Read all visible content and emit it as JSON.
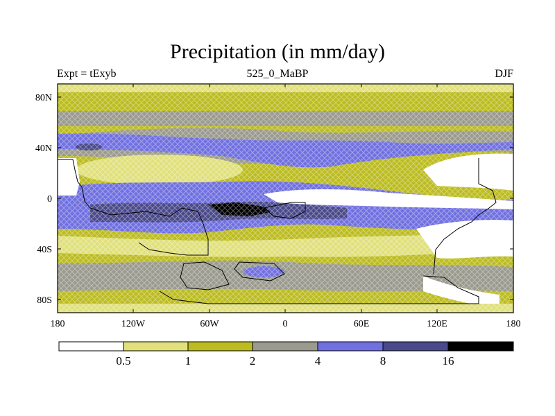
{
  "title": "Precipitation (in mm/day)",
  "subtitle_left": "Expt = tExyb",
  "subtitle_center": "525_0_MaBP",
  "subtitle_right": "DJF",
  "map": {
    "lon_range": [
      -180,
      180
    ],
    "lat_range": [
      -90,
      90
    ],
    "lat_ticks": [
      {
        "value": 80,
        "label": "80N"
      },
      {
        "value": 40,
        "label": "40N"
      },
      {
        "value": 0,
        "label": "0"
      },
      {
        "value": -40,
        "label": "40S"
      },
      {
        "value": -80,
        "label": "80S"
      }
    ],
    "lon_ticks": [
      {
        "value": -180,
        "label": "180"
      },
      {
        "value": -120,
        "label": "120W"
      },
      {
        "value": -60,
        "label": "60W"
      },
      {
        "value": 0,
        "label": "0"
      },
      {
        "value": 60,
        "label": "60E"
      },
      {
        "value": 120,
        "label": "120E"
      },
      {
        "value": 180,
        "label": "180"
      }
    ],
    "colorbar": {
      "colors": [
        "#ffffff",
        "#e0e07c",
        "#bcbc22",
        "#9a9a8e",
        "#7070e0",
        "#4a4a8a",
        "#000000"
      ],
      "labels": [
        "0.5",
        "1",
        "2",
        "4",
        "8",
        "16"
      ]
    },
    "palette": {
      "white": "#ffffff",
      "light_yellow": "#e0e07c",
      "olive": "#bcbc22",
      "gray": "#9a9a8e",
      "blue": "#7070e0",
      "dark_blue": "#4a4a8a",
      "black": "#000000"
    }
  }
}
